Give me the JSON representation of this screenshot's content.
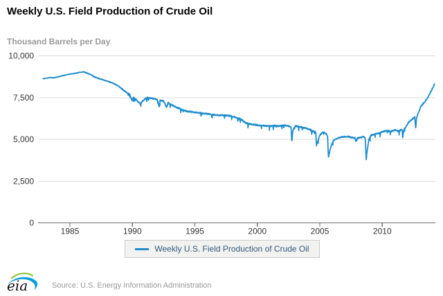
{
  "header": {
    "title": "Weekly U.S. Field Production of Crude Oil",
    "units_label": "Thousand Barrels per Day"
  },
  "legend": {
    "label": "Weekly U.S. Field Production of Crude Oil"
  },
  "footer": {
    "logo_text": "eia",
    "source": "Source: U.S. Energy Information Administration"
  },
  "colors": {
    "line": "#1f8dce",
    "grid": "#dcdcdc",
    "axis": "#6e6e6e",
    "tick_label": "#333333",
    "legend_text": "#36597c",
    "legend_bg": "#f2f2f0",
    "legend_border": "#cccccc",
    "subtitle_gray": "#999999",
    "logo_green": "#8cc63e",
    "logo_blue": "#0c9ed9"
  },
  "chart_data": {
    "type": "line",
    "title": "Weekly U.S. Field Production of Crude Oil",
    "ylabel": "Thousand Barrels per Day",
    "xlabel": "",
    "x_range": [
      1982.45,
      2014.25
    ],
    "ylim": [
      0,
      10000
    ],
    "grid": "horizontal",
    "legend_position": "bottom-center",
    "y_ticks": [
      {
        "value": 0,
        "label": "0"
      },
      {
        "value": 2500,
        "label": "2,500"
      },
      {
        "value": 5000,
        "label": "5,000"
      },
      {
        "value": 7500,
        "label": "7,500"
      },
      {
        "value": 10000,
        "label": "10,000"
      }
    ],
    "x_ticks": [
      {
        "value": 1985,
        "label": "1985"
      },
      {
        "value": 1990,
        "label": "1990"
      },
      {
        "value": 1995,
        "label": "1995"
      },
      {
        "value": 2000,
        "label": "2000"
      },
      {
        "value": 2005,
        "label": "2005"
      },
      {
        "value": 2010,
        "label": "2010"
      }
    ],
    "series": [
      {
        "name": "Weekly U.S. Field Production of Crude Oil",
        "color": "#1f8dce",
        "frequency": "weekly",
        "unit": "thousand barrels per day",
        "anchor_points": [
          [
            1982.85,
            8630
          ],
          [
            1983.1,
            8660
          ],
          [
            1983.4,
            8700
          ],
          [
            1983.7,
            8680
          ],
          [
            1984.0,
            8730
          ],
          [
            1984.3,
            8790
          ],
          [
            1984.7,
            8860
          ],
          [
            1985.0,
            8900
          ],
          [
            1985.4,
            8950
          ],
          [
            1985.8,
            9010
          ],
          [
            1986.1,
            9040
          ],
          [
            1986.4,
            8960
          ],
          [
            1986.7,
            8860
          ],
          [
            1987.0,
            8720
          ],
          [
            1987.4,
            8620
          ],
          [
            1987.8,
            8530
          ],
          [
            1988.2,
            8430
          ],
          [
            1988.6,
            8310
          ],
          [
            1989.0,
            8120
          ],
          [
            1989.4,
            7880
          ],
          [
            1989.8,
            7680
          ],
          [
            1989.98,
            7280
          ],
          [
            1990.08,
            7520
          ],
          [
            1990.3,
            7380
          ],
          [
            1990.62,
            7120
          ],
          [
            1990.8,
            7260
          ],
          [
            1991.1,
            7500
          ],
          [
            1991.4,
            7480
          ],
          [
            1991.7,
            7430
          ],
          [
            1992.0,
            7390
          ],
          [
            1992.15,
            6950
          ],
          [
            1992.22,
            7350
          ],
          [
            1992.5,
            7280
          ],
          [
            1992.75,
            6900
          ],
          [
            1992.85,
            7180
          ],
          [
            1993.1,
            7080
          ],
          [
            1993.5,
            6930
          ],
          [
            1993.8,
            6830
          ],
          [
            1994.1,
            6730
          ],
          [
            1994.5,
            6660
          ],
          [
            1994.9,
            6620
          ],
          [
            1995.3,
            6590
          ],
          [
            1995.7,
            6560
          ],
          [
            1996.1,
            6510
          ],
          [
            1996.5,
            6470
          ],
          [
            1996.9,
            6450
          ],
          [
            1997.3,
            6440
          ],
          [
            1997.7,
            6410
          ],
          [
            1998.0,
            6380
          ],
          [
            1998.4,
            6280
          ],
          [
            1998.75,
            6170
          ],
          [
            1999.05,
            5990
          ],
          [
            1999.4,
            5910
          ],
          [
            1999.8,
            5870
          ],
          [
            2000.2,
            5840
          ],
          [
            2000.6,
            5810
          ],
          [
            2001.0,
            5800
          ],
          [
            2001.4,
            5810
          ],
          [
            2001.8,
            5790
          ],
          [
            2002.1,
            5840
          ],
          [
            2002.45,
            5810
          ],
          [
            2002.7,
            5730
          ],
          [
            2002.76,
            4830
          ],
          [
            2002.84,
            5550
          ],
          [
            2003.05,
            5800
          ],
          [
            2003.45,
            5740
          ],
          [
            2003.85,
            5670
          ],
          [
            2004.2,
            5590
          ],
          [
            2004.5,
            5490
          ],
          [
            2004.68,
            5420
          ],
          [
            2004.73,
            4630
          ],
          [
            2004.83,
            4890
          ],
          [
            2005.0,
            5240
          ],
          [
            2005.25,
            5430
          ],
          [
            2005.5,
            5340
          ],
          [
            2005.62,
            5180
          ],
          [
            2005.69,
            3900
          ],
          [
            2005.79,
            4280
          ],
          [
            2005.92,
            4640
          ],
          [
            2006.1,
            4940
          ],
          [
            2006.4,
            5070
          ],
          [
            2006.8,
            5140
          ],
          [
            2007.2,
            5170
          ],
          [
            2007.6,
            5110
          ],
          [
            2007.88,
            5060
          ],
          [
            2007.93,
            4840
          ],
          [
            2008.0,
            5070
          ],
          [
            2008.3,
            5120
          ],
          [
            2008.55,
            5150
          ],
          [
            2008.64,
            5040
          ],
          [
            2008.71,
            3790
          ],
          [
            2008.8,
            4360
          ],
          [
            2008.92,
            4960
          ],
          [
            2009.1,
            5240
          ],
          [
            2009.45,
            5320
          ],
          [
            2009.8,
            5380
          ],
          [
            2010.1,
            5470
          ],
          [
            2010.4,
            5520
          ],
          [
            2010.7,
            5460
          ],
          [
            2011.0,
            5560
          ],
          [
            2011.3,
            5480
          ],
          [
            2011.58,
            5600
          ],
          [
            2011.64,
            5090
          ],
          [
            2011.72,
            5590
          ],
          [
            2011.9,
            5750
          ],
          [
            2012.1,
            6020
          ],
          [
            2012.35,
            6180
          ],
          [
            2012.6,
            6330
          ],
          [
            2012.67,
            5640
          ],
          [
            2012.74,
            6280
          ],
          [
            2012.9,
            6620
          ],
          [
            2013.1,
            6990
          ],
          [
            2013.3,
            7160
          ],
          [
            2013.5,
            7340
          ],
          [
            2013.65,
            7520
          ],
          [
            2013.8,
            7720
          ],
          [
            2013.95,
            7960
          ],
          [
            2014.08,
            8120
          ],
          [
            2014.18,
            8320
          ]
        ]
      }
    ]
  }
}
